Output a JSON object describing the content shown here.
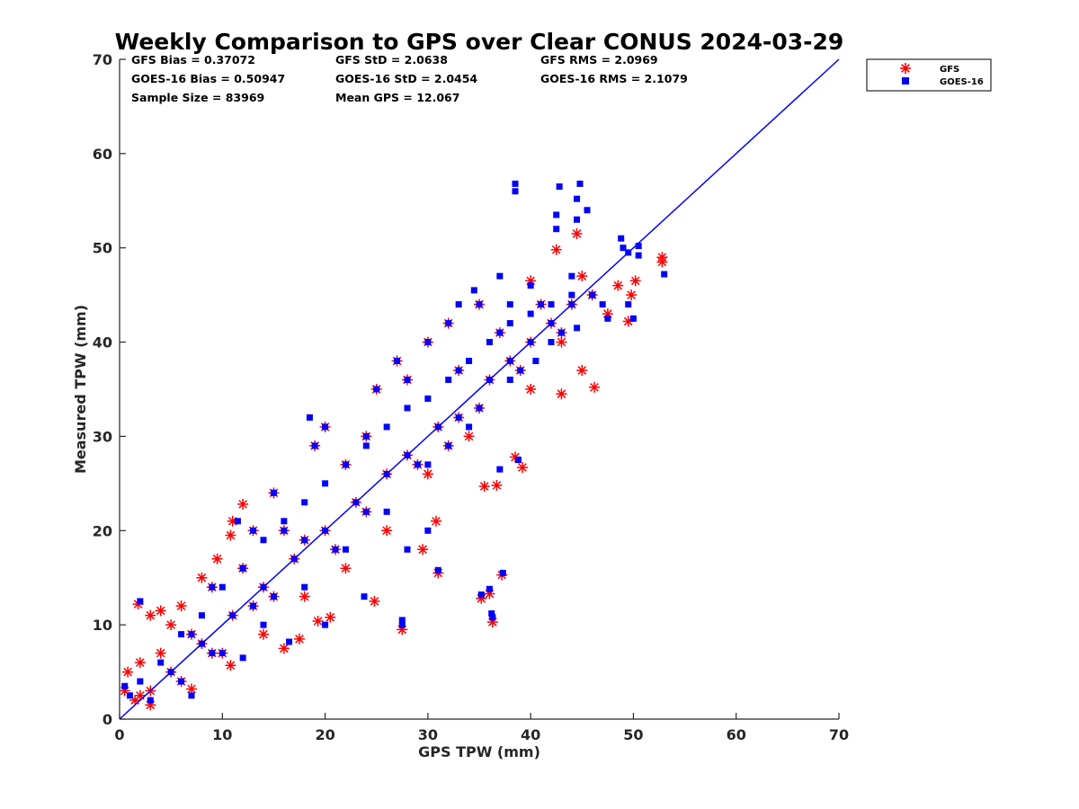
{
  "chart_data": {
    "type": "scatter",
    "title": "Weekly Comparison to GPS over Clear CONUS 2024-03-29",
    "xlabel": "GPS TPW (mm)",
    "ylabel": "Measured TPW (mm)",
    "xlim": [
      0,
      70
    ],
    "ylim": [
      0,
      70
    ],
    "xticks": [
      "0",
      "10",
      "20",
      "30",
      "40",
      "50",
      "60",
      "70"
    ],
    "yticks": [
      "0",
      "10",
      "20",
      "30",
      "40",
      "50",
      "60",
      "70"
    ],
    "grid": false,
    "legend_position": "outside-top-right",
    "stats": {
      "gfs_bias": "GFS Bias = 0.37072",
      "goes_bias": "GOES-16 Bias = 0.50947",
      "sample_size": "Sample Size = 83969",
      "gfs_std": "GFS StD = 2.0638",
      "goes_std": "GOES-16 StD = 2.0454",
      "mean_gps": "Mean GPS = 12.067",
      "gfs_rms": "GFS RMS = 2.0969",
      "goes_rms": "GOES-16 RMS = 2.1079"
    },
    "reference_line": {
      "x": [
        0,
        70
      ],
      "y": [
        0,
        70
      ],
      "color": "#0000ff"
    },
    "series": [
      {
        "name": "GFS",
        "marker": "asterisk",
        "color": "#ff0000",
        "points": [
          [
            1.8,
            12.2
          ],
          [
            3,
            11
          ],
          [
            4,
            11.5
          ],
          [
            12,
            22.8
          ],
          [
            11,
            21
          ],
          [
            10.8,
            19.5
          ],
          [
            42.5,
            49.8
          ],
          [
            44.5,
            51.5
          ],
          [
            52.8,
            49
          ],
          [
            52.8,
            48.5
          ],
          [
            49.5,
            42.2
          ],
          [
            49.8,
            45
          ],
          [
            50.2,
            46.5
          ],
          [
            46.2,
            35.2
          ],
          [
            43,
            34.5
          ],
          [
            45,
            37
          ],
          [
            27.5,
            9.5
          ],
          [
            36.3,
            10.3
          ],
          [
            35.2,
            12.8
          ],
          [
            36,
            13.3
          ],
          [
            31,
            15.5
          ],
          [
            37.2,
            15.3
          ],
          [
            39.2,
            26.7
          ],
          [
            38.5,
            27.8
          ],
          [
            36.7,
            24.8
          ],
          [
            35.5,
            24.7
          ],
          [
            30.8,
            21
          ],
          [
            29.5,
            18
          ],
          [
            24.8,
            12.5
          ],
          [
            19.3,
            10.4
          ],
          [
            17.5,
            8.5
          ],
          [
            16,
            7.5
          ],
          [
            20.5,
            10.8
          ],
          [
            10.8,
            5.7
          ],
          [
            7,
            3.2
          ],
          [
            3,
            1.5
          ],
          [
            1.5,
            2
          ],
          [
            0.5,
            3
          ],
          [
            0.8,
            5
          ],
          [
            2,
            6
          ],
          [
            5,
            10
          ],
          [
            6,
            12
          ],
          [
            8,
            15
          ],
          [
            9.5,
            17
          ],
          [
            27,
            38
          ],
          [
            30,
            40
          ],
          [
            32,
            42
          ],
          [
            35,
            44
          ],
          [
            40,
            46.5
          ],
          [
            45,
            47
          ],
          [
            47.5,
            43
          ],
          [
            43,
            40
          ],
          [
            40,
            35
          ],
          [
            34,
            30
          ],
          [
            30,
            26
          ],
          [
            26,
            20
          ],
          [
            22,
            16
          ],
          [
            18,
            13
          ],
          [
            14,
            9
          ],
          [
            10,
            7
          ],
          [
            20,
            31
          ],
          [
            19,
            29
          ],
          [
            25,
            35
          ],
          [
            28,
            36
          ],
          [
            22,
            27
          ],
          [
            24,
            30
          ],
          [
            33,
            37
          ],
          [
            37,
            41
          ],
          [
            41,
            44
          ],
          [
            15,
            24
          ],
          [
            13,
            20
          ],
          [
            9,
            14
          ],
          [
            12,
            16
          ],
          [
            16,
            20
          ],
          [
            23,
            23
          ],
          [
            28,
            28
          ],
          [
            33,
            32
          ],
          [
            38,
            38
          ],
          [
            42,
            42
          ],
          [
            46,
            45
          ],
          [
            48.5,
            46
          ],
          [
            5,
            5
          ],
          [
            8,
            8
          ],
          [
            11,
            11
          ],
          [
            14,
            14
          ],
          [
            17,
            17
          ],
          [
            20,
            20
          ],
          [
            26,
            26
          ],
          [
            31,
            31
          ],
          [
            36,
            36
          ],
          [
            40,
            40
          ],
          [
            44,
            44
          ],
          [
            4,
            7
          ],
          [
            6,
            4
          ],
          [
            3,
            3
          ],
          [
            2,
            2.5
          ],
          [
            7,
            9
          ],
          [
            9,
            7
          ],
          [
            13,
            12
          ],
          [
            15,
            13
          ],
          [
            18,
            19
          ],
          [
            21,
            18
          ],
          [
            24,
            22
          ],
          [
            29,
            27
          ],
          [
            32,
            29
          ],
          [
            35,
            33
          ],
          [
            39,
            37
          ],
          [
            43,
            41
          ]
        ]
      },
      {
        "name": "GOES-16",
        "marker": "square",
        "color": "#0000ff",
        "points": [
          [
            38.5,
            56.8
          ],
          [
            38.5,
            56
          ],
          [
            44.8,
            56.8
          ],
          [
            44.5,
            55.2
          ],
          [
            45.5,
            54
          ],
          [
            42.8,
            56.5
          ],
          [
            42.5,
            53.5
          ],
          [
            44.5,
            53
          ],
          [
            42.5,
            52
          ],
          [
            48.8,
            51
          ],
          [
            49,
            50
          ],
          [
            49.5,
            49.5
          ],
          [
            50.5,
            50.2
          ],
          [
            50.5,
            49.2
          ],
          [
            53,
            47.2
          ],
          [
            49.5,
            44
          ],
          [
            50,
            42.5
          ],
          [
            47.5,
            42.5
          ],
          [
            44.5,
            41.5
          ],
          [
            40.5,
            38
          ],
          [
            34.5,
            45.5
          ],
          [
            33,
            44
          ],
          [
            37,
            47
          ],
          [
            38,
            44
          ],
          [
            27.5,
            10.5
          ],
          [
            27.5,
            10
          ],
          [
            36.2,
            11.2
          ],
          [
            36.3,
            10.8
          ],
          [
            35.2,
            13.2
          ],
          [
            36,
            13.8
          ],
          [
            31,
            15.8
          ],
          [
            37.3,
            15.5
          ],
          [
            38.8,
            27.5
          ],
          [
            37,
            26.5
          ],
          [
            30,
            20
          ],
          [
            28,
            18
          ],
          [
            23.8,
            13
          ],
          [
            20,
            10
          ],
          [
            16.5,
            8.2
          ],
          [
            12,
            6.5
          ],
          [
            7,
            2.5
          ],
          [
            2,
            12.5
          ],
          [
            11.5,
            21
          ],
          [
            18.5,
            32
          ],
          [
            27,
            38
          ],
          [
            30,
            40
          ],
          [
            32,
            42
          ],
          [
            35,
            44
          ],
          [
            40,
            46
          ],
          [
            44,
            47
          ],
          [
            46,
            45
          ],
          [
            47,
            44
          ],
          [
            42,
            40
          ],
          [
            38,
            36
          ],
          [
            34,
            31
          ],
          [
            30,
            27
          ],
          [
            26,
            22
          ],
          [
            22,
            18
          ],
          [
            18,
            14
          ],
          [
            14,
            10
          ],
          [
            10,
            7
          ],
          [
            6,
            4
          ],
          [
            3,
            2
          ],
          [
            1,
            2.5
          ],
          [
            0.5,
            3.5
          ],
          [
            2,
            4
          ],
          [
            4,
            6
          ],
          [
            6,
            9
          ],
          [
            8,
            11
          ],
          [
            10,
            14
          ],
          [
            12,
            16
          ],
          [
            14,
            19
          ],
          [
            16,
            21
          ],
          [
            18,
            23
          ],
          [
            20,
            25
          ],
          [
            22,
            27
          ],
          [
            24,
            29
          ],
          [
            26,
            31
          ],
          [
            28,
            33
          ],
          [
            30,
            34
          ],
          [
            32,
            36
          ],
          [
            34,
            38
          ],
          [
            36,
            40
          ],
          [
            38,
            42
          ],
          [
            40,
            43
          ],
          [
            42,
            44
          ],
          [
            44,
            45
          ],
          [
            20,
            31
          ],
          [
            19,
            29
          ],
          [
            25,
            35
          ],
          [
            28,
            36
          ],
          [
            22,
            27
          ],
          [
            24,
            30
          ],
          [
            33,
            37
          ],
          [
            37,
            41
          ],
          [
            41,
            44
          ],
          [
            15,
            24
          ],
          [
            13,
            20
          ],
          [
            9,
            14
          ],
          [
            12,
            16
          ],
          [
            16,
            20
          ],
          [
            23,
            23
          ],
          [
            28,
            28
          ],
          [
            33,
            32
          ],
          [
            38,
            38
          ],
          [
            42,
            42
          ],
          [
            46,
            45
          ],
          [
            5,
            5
          ],
          [
            8,
            8
          ],
          [
            11,
            11
          ],
          [
            14,
            14
          ],
          [
            17,
            17
          ],
          [
            20,
            20
          ],
          [
            26,
            26
          ],
          [
            31,
            31
          ],
          [
            36,
            36
          ],
          [
            40,
            40
          ],
          [
            44,
            44
          ],
          [
            7,
            9
          ],
          [
            9,
            7
          ],
          [
            13,
            12
          ],
          [
            15,
            13
          ],
          [
            18,
            19
          ],
          [
            21,
            18
          ],
          [
            24,
            22
          ],
          [
            29,
            27
          ],
          [
            32,
            29
          ],
          [
            35,
            33
          ],
          [
            39,
            37
          ],
          [
            43,
            41
          ]
        ]
      }
    ]
  }
}
